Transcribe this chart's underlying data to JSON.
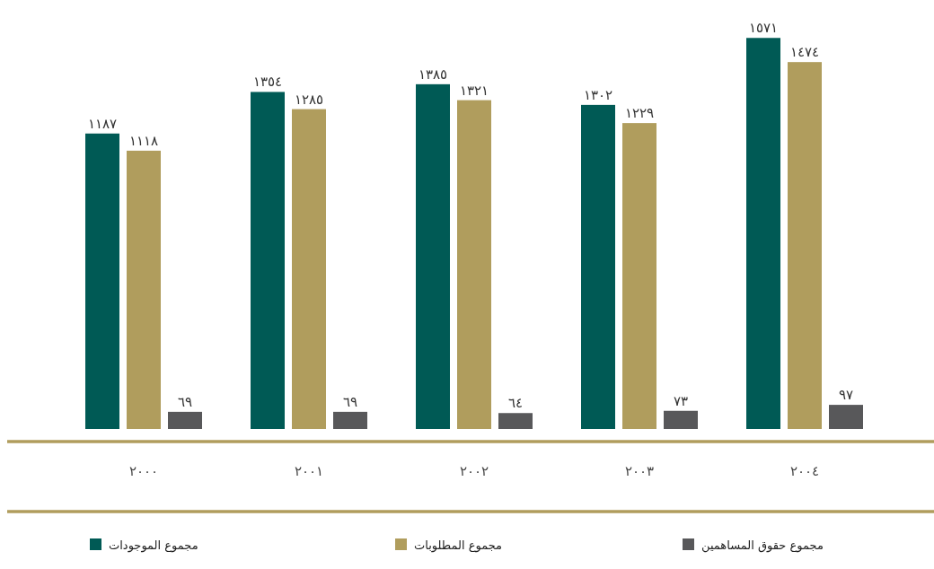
{
  "chart_data": {
    "type": "bar",
    "legend": "bottom",
    "categories": [
      "٢٠٠٠",
      "٢٠٠١",
      "٢٠٠٢",
      "٢٠٠٣",
      "٢٠٠٤"
    ],
    "series": [
      {
        "name": "مجموع الموجودات",
        "color": "#005a55",
        "values": [
          1187,
          1354,
          1385,
          1302,
          1571
        ],
        "value_labels": [
          "١١٨٧",
          "١٣٥٤",
          "١٣٨٥",
          "١٣٠٢",
          "١٥٧١"
        ]
      },
      {
        "name": "مجموع المطلوبات",
        "color": "#b09d5d",
        "values": [
          1118,
          1285,
          1321,
          1229,
          1474
        ],
        "value_labels": [
          "١١١٨",
          "١٢٨٥",
          "١٣٢١",
          "١٢٢٩",
          "١٤٧٤"
        ]
      },
      {
        "name": "مجموع حقوق المساهمين",
        "color": "#58585a",
        "values": [
          69,
          69,
          64,
          73,
          97
        ],
        "value_labels": [
          "٦٩",
          "٦٩",
          "٦٤",
          "٧٣",
          "٩٧"
        ]
      }
    ]
  }
}
